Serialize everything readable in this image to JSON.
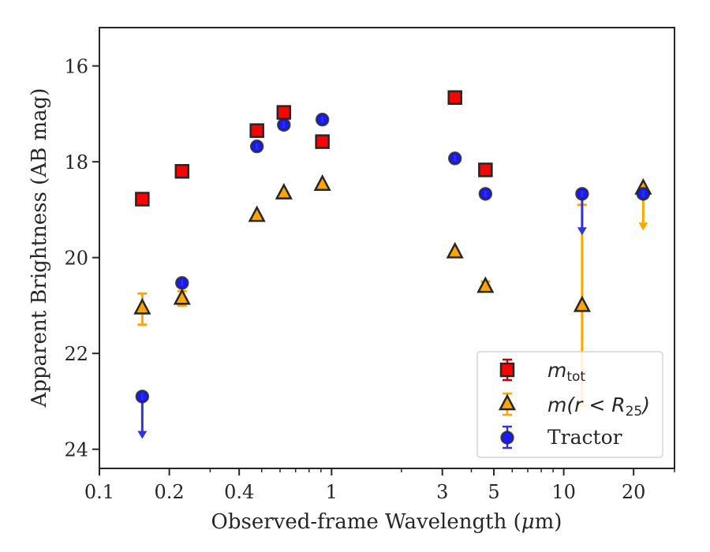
{
  "chart_data": {
    "type": "scatter",
    "xlabel_main": "Observed-frame Wavelength (",
    "xlabel_mu": "μ",
    "xlabel_end": "m)",
    "ylabel": "Apparent Brightness (AB mag)",
    "xscale": "log",
    "xlim": [
      0.1,
      30
    ],
    "ylim": [
      24.4,
      15.2
    ],
    "y_inverted": true,
    "grid": false,
    "legend_position": "lower-right",
    "x_ticks": [
      {
        "value": 0.1,
        "label": "0.1"
      },
      {
        "value": 0.2,
        "label": "0.2"
      },
      {
        "value": 0.4,
        "label": "0.4"
      },
      {
        "value": 1,
        "label": "1"
      },
      {
        "value": 3,
        "label": "3"
      },
      {
        "value": 5,
        "label": "5"
      },
      {
        "value": 10,
        "label": "10"
      },
      {
        "value": 20,
        "label": "20"
      }
    ],
    "y_ticks": [
      {
        "value": 16,
        "label": "16"
      },
      {
        "value": 18,
        "label": "18"
      },
      {
        "value": 20,
        "label": "20"
      },
      {
        "value": 22,
        "label": "22"
      },
      {
        "value": 24,
        "label": "24"
      }
    ],
    "series": [
      {
        "name": "m_tot",
        "marker": "square",
        "color": "#ff0000",
        "errcolor": "#cc0000",
        "points": [
          {
            "x": 0.153,
            "y": 18.78
          },
          {
            "x": 0.227,
            "y": 18.2
          },
          {
            "x": 0.477,
            "y": 17.35
          },
          {
            "x": 0.623,
            "y": 16.97
          },
          {
            "x": 0.913,
            "y": 17.58
          },
          {
            "x": 3.4,
            "y": 16.66
          },
          {
            "x": 4.6,
            "y": 18.17
          }
        ]
      },
      {
        "name": "m(r < R25)",
        "marker": "triangle",
        "color": "#ffa500",
        "errcolor": "#ffa500",
        "points": [
          {
            "x": 0.153,
            "y": 21.05,
            "err_lo": 20.75,
            "err_hi": 21.4
          },
          {
            "x": 0.227,
            "y": 20.85,
            "err_lo": 20.7,
            "err_hi": 21.0
          },
          {
            "x": 0.477,
            "y": 19.12
          },
          {
            "x": 0.623,
            "y": 18.65
          },
          {
            "x": 0.913,
            "y": 18.47
          },
          {
            "x": 3.4,
            "y": 19.88
          },
          {
            "x": 4.6,
            "y": 20.6,
            "err_lo": 20.5,
            "err_hi": 20.65
          },
          {
            "x": 12.0,
            "y": 21.0,
            "err_lo": 18.9,
            "err_hi": 23.1
          },
          {
            "x": 22.0,
            "y": 18.55,
            "upper_limit_to": 19.4
          }
        ]
      },
      {
        "name": "Tractor",
        "marker": "circle",
        "color": "#0000ff",
        "errcolor": "#3333dd",
        "points": [
          {
            "x": 0.153,
            "y": 22.9,
            "upper_limit_to": 23.75
          },
          {
            "x": 0.227,
            "y": 20.53
          },
          {
            "x": 0.477,
            "y": 17.68
          },
          {
            "x": 0.623,
            "y": 17.23
          },
          {
            "x": 0.913,
            "y": 17.12
          },
          {
            "x": 3.4,
            "y": 17.93
          },
          {
            "x": 4.6,
            "y": 18.67
          },
          {
            "x": 12.0,
            "y": 18.67,
            "upper_limit_to": 19.5
          },
          {
            "x": 22.0,
            "y": 18.67
          }
        ]
      }
    ],
    "legend": {
      "tot_base": "m",
      "tot_sub": "tot",
      "r25_pre": "m(r < R",
      "r25_sub": "25",
      "r25_post": ")",
      "tractor": "Tractor"
    }
  }
}
